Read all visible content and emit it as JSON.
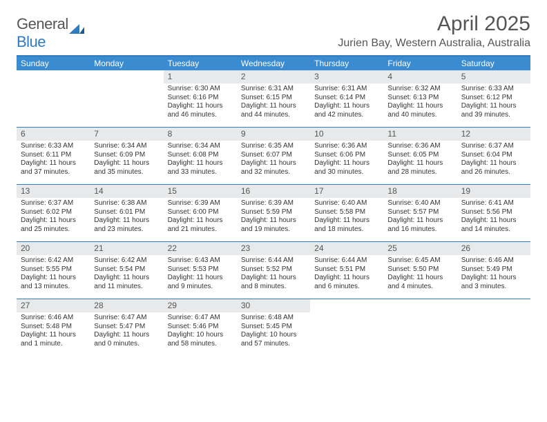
{
  "brand": {
    "name_part1": "General",
    "name_part2": "Blue"
  },
  "title": "April 2025",
  "location": "Jurien Bay, Western Australia, Australia",
  "colors": {
    "header_bar": "#3b8bd0",
    "border": "#2f7ac0",
    "daynum_bg": "#e7e9ea",
    "text": "#555555"
  },
  "days_of_week": [
    "Sunday",
    "Monday",
    "Tuesday",
    "Wednesday",
    "Thursday",
    "Friday",
    "Saturday"
  ],
  "weeks": [
    [
      null,
      null,
      {
        "n": "1",
        "sr": "Sunrise: 6:30 AM",
        "ss": "Sunset: 6:16 PM",
        "dl": "Daylight: 11 hours and 46 minutes."
      },
      {
        "n": "2",
        "sr": "Sunrise: 6:31 AM",
        "ss": "Sunset: 6:15 PM",
        "dl": "Daylight: 11 hours and 44 minutes."
      },
      {
        "n": "3",
        "sr": "Sunrise: 6:31 AM",
        "ss": "Sunset: 6:14 PM",
        "dl": "Daylight: 11 hours and 42 minutes."
      },
      {
        "n": "4",
        "sr": "Sunrise: 6:32 AM",
        "ss": "Sunset: 6:13 PM",
        "dl": "Daylight: 11 hours and 40 minutes."
      },
      {
        "n": "5",
        "sr": "Sunrise: 6:33 AM",
        "ss": "Sunset: 6:12 PM",
        "dl": "Daylight: 11 hours and 39 minutes."
      }
    ],
    [
      {
        "n": "6",
        "sr": "Sunrise: 6:33 AM",
        "ss": "Sunset: 6:11 PM",
        "dl": "Daylight: 11 hours and 37 minutes."
      },
      {
        "n": "7",
        "sr": "Sunrise: 6:34 AM",
        "ss": "Sunset: 6:09 PM",
        "dl": "Daylight: 11 hours and 35 minutes."
      },
      {
        "n": "8",
        "sr": "Sunrise: 6:34 AM",
        "ss": "Sunset: 6:08 PM",
        "dl": "Daylight: 11 hours and 33 minutes."
      },
      {
        "n": "9",
        "sr": "Sunrise: 6:35 AM",
        "ss": "Sunset: 6:07 PM",
        "dl": "Daylight: 11 hours and 32 minutes."
      },
      {
        "n": "10",
        "sr": "Sunrise: 6:36 AM",
        "ss": "Sunset: 6:06 PM",
        "dl": "Daylight: 11 hours and 30 minutes."
      },
      {
        "n": "11",
        "sr": "Sunrise: 6:36 AM",
        "ss": "Sunset: 6:05 PM",
        "dl": "Daylight: 11 hours and 28 minutes."
      },
      {
        "n": "12",
        "sr": "Sunrise: 6:37 AM",
        "ss": "Sunset: 6:04 PM",
        "dl": "Daylight: 11 hours and 26 minutes."
      }
    ],
    [
      {
        "n": "13",
        "sr": "Sunrise: 6:37 AM",
        "ss": "Sunset: 6:02 PM",
        "dl": "Daylight: 11 hours and 25 minutes."
      },
      {
        "n": "14",
        "sr": "Sunrise: 6:38 AM",
        "ss": "Sunset: 6:01 PM",
        "dl": "Daylight: 11 hours and 23 minutes."
      },
      {
        "n": "15",
        "sr": "Sunrise: 6:39 AM",
        "ss": "Sunset: 6:00 PM",
        "dl": "Daylight: 11 hours and 21 minutes."
      },
      {
        "n": "16",
        "sr": "Sunrise: 6:39 AM",
        "ss": "Sunset: 5:59 PM",
        "dl": "Daylight: 11 hours and 19 minutes."
      },
      {
        "n": "17",
        "sr": "Sunrise: 6:40 AM",
        "ss": "Sunset: 5:58 PM",
        "dl": "Daylight: 11 hours and 18 minutes."
      },
      {
        "n": "18",
        "sr": "Sunrise: 6:40 AM",
        "ss": "Sunset: 5:57 PM",
        "dl": "Daylight: 11 hours and 16 minutes."
      },
      {
        "n": "19",
        "sr": "Sunrise: 6:41 AM",
        "ss": "Sunset: 5:56 PM",
        "dl": "Daylight: 11 hours and 14 minutes."
      }
    ],
    [
      {
        "n": "20",
        "sr": "Sunrise: 6:42 AM",
        "ss": "Sunset: 5:55 PM",
        "dl": "Daylight: 11 hours and 13 minutes."
      },
      {
        "n": "21",
        "sr": "Sunrise: 6:42 AM",
        "ss": "Sunset: 5:54 PM",
        "dl": "Daylight: 11 hours and 11 minutes."
      },
      {
        "n": "22",
        "sr": "Sunrise: 6:43 AM",
        "ss": "Sunset: 5:53 PM",
        "dl": "Daylight: 11 hours and 9 minutes."
      },
      {
        "n": "23",
        "sr": "Sunrise: 6:44 AM",
        "ss": "Sunset: 5:52 PM",
        "dl": "Daylight: 11 hours and 8 minutes."
      },
      {
        "n": "24",
        "sr": "Sunrise: 6:44 AM",
        "ss": "Sunset: 5:51 PM",
        "dl": "Daylight: 11 hours and 6 minutes."
      },
      {
        "n": "25",
        "sr": "Sunrise: 6:45 AM",
        "ss": "Sunset: 5:50 PM",
        "dl": "Daylight: 11 hours and 4 minutes."
      },
      {
        "n": "26",
        "sr": "Sunrise: 6:46 AM",
        "ss": "Sunset: 5:49 PM",
        "dl": "Daylight: 11 hours and 3 minutes."
      }
    ],
    [
      {
        "n": "27",
        "sr": "Sunrise: 6:46 AM",
        "ss": "Sunset: 5:48 PM",
        "dl": "Daylight: 11 hours and 1 minute."
      },
      {
        "n": "28",
        "sr": "Sunrise: 6:47 AM",
        "ss": "Sunset: 5:47 PM",
        "dl": "Daylight: 11 hours and 0 minutes."
      },
      {
        "n": "29",
        "sr": "Sunrise: 6:47 AM",
        "ss": "Sunset: 5:46 PM",
        "dl": "Daylight: 10 hours and 58 minutes."
      },
      {
        "n": "30",
        "sr": "Sunrise: 6:48 AM",
        "ss": "Sunset: 5:45 PM",
        "dl": "Daylight: 10 hours and 57 minutes."
      },
      null,
      null,
      null
    ]
  ]
}
